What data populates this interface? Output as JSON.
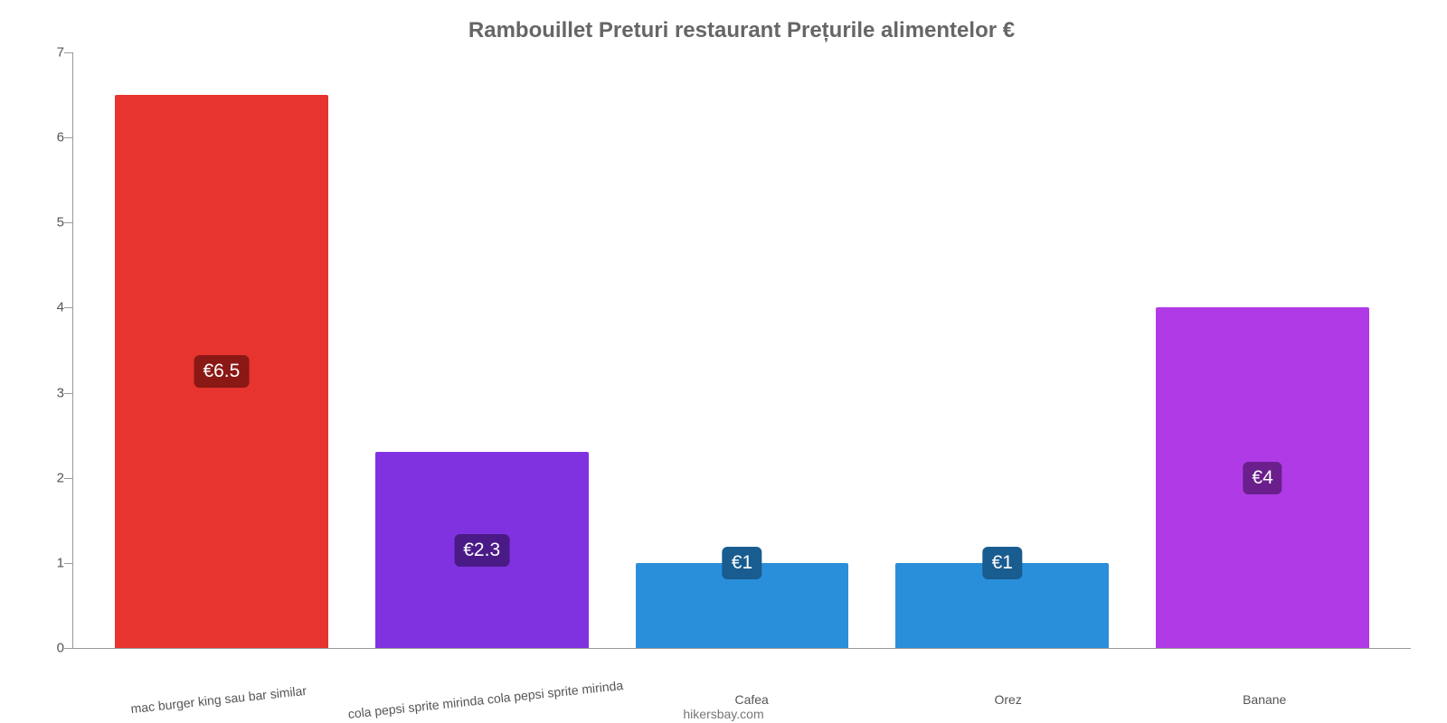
{
  "chart": {
    "type": "bar",
    "title": "Rambouillet Preturi restaurant Prețurile alimentelor €",
    "title_fontsize": 24,
    "title_color": "#666666",
    "background_color": "#ffffff",
    "axis_color": "#999999",
    "tick_label_color": "#555555",
    "tick_label_fontsize": 15,
    "x_label_fontsize": 14,
    "value_label_fontsize": 21,
    "ylim": [
      0,
      7
    ],
    "ytick_step": 1,
    "yticks": [
      "0",
      "1",
      "2",
      "3",
      "4",
      "5",
      "6",
      "7"
    ],
    "bar_width_pct": 82,
    "categories": [
      "mac burger king sau bar similar",
      "cola pepsi sprite mirinda cola pepsi sprite mirinda",
      "Cafea",
      "Orez",
      "Banane"
    ],
    "values": [
      6.5,
      2.3,
      1,
      1,
      4
    ],
    "value_labels": [
      "€6.5",
      "€2.3",
      "€1",
      "€1",
      "€4"
    ],
    "bar_colors": [
      "#e7342e",
      "#8132e0",
      "#2a8fdb",
      "#2a8fdb",
      "#b03be6"
    ],
    "badge_bg_colors": [
      "#8a1815",
      "#4a1a87",
      "#195c8f",
      "#195c8f",
      "#6a1f8c"
    ],
    "x_label_rotated": [
      true,
      true,
      false,
      false,
      false
    ],
    "footer": "hikersbay.com"
  }
}
